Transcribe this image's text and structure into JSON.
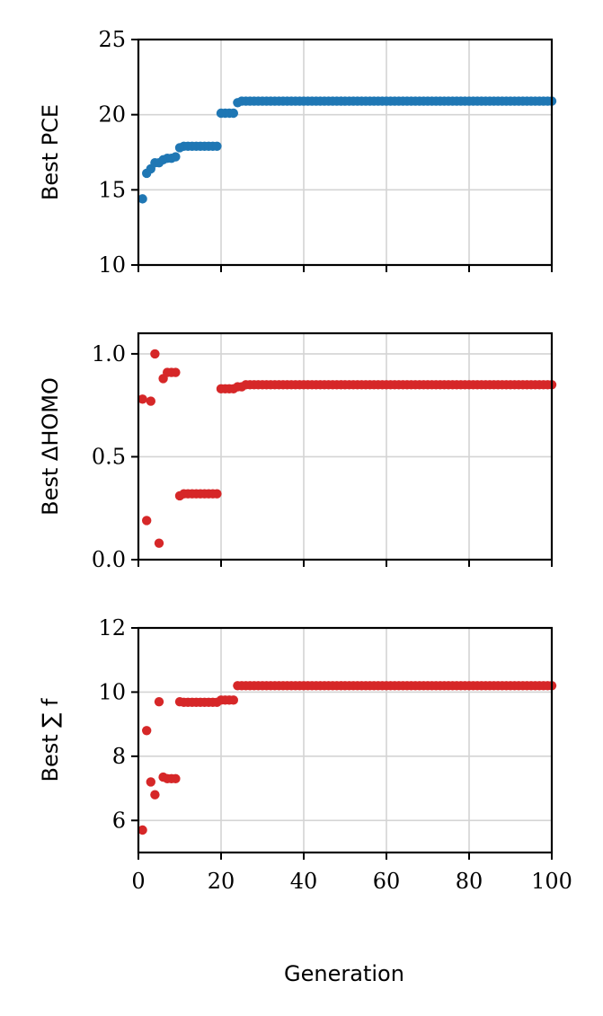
{
  "chart_data": [
    {
      "type": "scatter",
      "ylabel": "Best PCE",
      "xlim": [
        0,
        100
      ],
      "ylim": [
        10,
        25
      ],
      "yticks": [
        10,
        15,
        20,
        25
      ],
      "xticks": [
        0,
        20,
        40,
        60,
        80,
        100
      ],
      "show_xtick_labels": false,
      "grid": true,
      "color": "#1f77b4",
      "series": [
        {
          "x": [
            1,
            2,
            3,
            4,
            5,
            6,
            7,
            8,
            9,
            10,
            11,
            12,
            13,
            14,
            15,
            16,
            17,
            18,
            19,
            20,
            21,
            22,
            23,
            24,
            25,
            26,
            27,
            28,
            29,
            30,
            31,
            32,
            33,
            34,
            35,
            36,
            37,
            38,
            39,
            40,
            41,
            42,
            43,
            44,
            45,
            46,
            47,
            48,
            49,
            50,
            51,
            52,
            53,
            54,
            55,
            56,
            57,
            58,
            59,
            60,
            61,
            62,
            63,
            64,
            65,
            66,
            67,
            68,
            69,
            70,
            71,
            72,
            73,
            74,
            75,
            76,
            77,
            78,
            79,
            80,
            81,
            82,
            83,
            84,
            85,
            86,
            87,
            88,
            89,
            90,
            91,
            92,
            93,
            94,
            95,
            96,
            97,
            98,
            99,
            100
          ],
          "y": [
            14.4,
            16.1,
            16.4,
            16.8,
            16.8,
            17.0,
            17.1,
            17.1,
            17.2,
            17.8,
            17.9,
            17.9,
            17.9,
            17.9,
            17.9,
            17.9,
            17.9,
            17.9,
            17.9,
            20.1,
            20.1,
            20.1,
            20.1,
            20.8,
            20.9,
            20.9,
            20.9,
            20.9,
            20.9,
            20.9,
            20.9,
            20.9,
            20.9,
            20.9,
            20.9,
            20.9,
            20.9,
            20.9,
            20.9,
            20.9,
            20.9,
            20.9,
            20.9,
            20.9,
            20.9,
            20.9,
            20.9,
            20.9,
            20.9,
            20.9,
            20.9,
            20.9,
            20.9,
            20.9,
            20.9,
            20.9,
            20.9,
            20.9,
            20.9,
            20.9,
            20.9,
            20.9,
            20.9,
            20.9,
            20.9,
            20.9,
            20.9,
            20.9,
            20.9,
            20.9,
            20.9,
            20.9,
            20.9,
            20.9,
            20.9,
            20.9,
            20.9,
            20.9,
            20.9,
            20.9,
            20.9,
            20.9,
            20.9,
            20.9,
            20.9,
            20.9,
            20.9,
            20.9,
            20.9,
            20.9,
            20.9,
            20.9,
            20.9,
            20.9,
            20.9,
            20.9,
            20.9,
            20.9,
            20.9,
            20.9
          ]
        }
      ]
    },
    {
      "type": "scatter",
      "ylabel": "Best ΔHOMO",
      "xlim": [
        0,
        100
      ],
      "ylim": [
        0,
        1.1
      ],
      "yticks": [
        0.0,
        0.5,
        1.0
      ],
      "ytick_labels": [
        "0.0",
        "0.5",
        "1.0"
      ],
      "xticks": [
        0,
        20,
        40,
        60,
        80,
        100
      ],
      "show_xtick_labels": false,
      "grid": true,
      "color": "#d62728",
      "series": [
        {
          "x": [
            1,
            2,
            3,
            4,
            5,
            6,
            7,
            8,
            9,
            10,
            11,
            12,
            13,
            14,
            15,
            16,
            17,
            18,
            19,
            20,
            21,
            22,
            23,
            24,
            25,
            26,
            27,
            28,
            29,
            30,
            31,
            32,
            33,
            34,
            35,
            36,
            37,
            38,
            39,
            40,
            41,
            42,
            43,
            44,
            45,
            46,
            47,
            48,
            49,
            50,
            51,
            52,
            53,
            54,
            55,
            56,
            57,
            58,
            59,
            60,
            61,
            62,
            63,
            64,
            65,
            66,
            67,
            68,
            69,
            70,
            71,
            72,
            73,
            74,
            75,
            76,
            77,
            78,
            79,
            80,
            81,
            82,
            83,
            84,
            85,
            86,
            87,
            88,
            89,
            90,
            91,
            92,
            93,
            94,
            95,
            96,
            97,
            98,
            99,
            100
          ],
          "y": [
            0.78,
            0.19,
            0.77,
            1.0,
            0.08,
            0.88,
            0.91,
            0.91,
            0.91,
            0.31,
            0.32,
            0.32,
            0.32,
            0.32,
            0.32,
            0.32,
            0.32,
            0.32,
            0.32,
            0.83,
            0.83,
            0.83,
            0.83,
            0.84,
            0.84,
            0.85,
            0.85,
            0.85,
            0.85,
            0.85,
            0.85,
            0.85,
            0.85,
            0.85,
            0.85,
            0.85,
            0.85,
            0.85,
            0.85,
            0.85,
            0.85,
            0.85,
            0.85,
            0.85,
            0.85,
            0.85,
            0.85,
            0.85,
            0.85,
            0.85,
            0.85,
            0.85,
            0.85,
            0.85,
            0.85,
            0.85,
            0.85,
            0.85,
            0.85,
            0.85,
            0.85,
            0.85,
            0.85,
            0.85,
            0.85,
            0.85,
            0.85,
            0.85,
            0.85,
            0.85,
            0.85,
            0.85,
            0.85,
            0.85,
            0.85,
            0.85,
            0.85,
            0.85,
            0.85,
            0.85,
            0.85,
            0.85,
            0.85,
            0.85,
            0.85,
            0.85,
            0.85,
            0.85,
            0.85,
            0.85,
            0.85,
            0.85,
            0.85,
            0.85,
            0.85,
            0.85,
            0.85,
            0.85,
            0.85,
            0.85
          ]
        }
      ]
    },
    {
      "type": "scatter",
      "ylabel": "Best ∑ f",
      "xlabel": "Generation",
      "xlim": [
        0,
        100
      ],
      "ylim": [
        5,
        12
      ],
      "yticks": [
        6,
        8,
        10,
        12
      ],
      "xticks": [
        0,
        20,
        40,
        60,
        80,
        100
      ],
      "show_xtick_labels": true,
      "grid": true,
      "color": "#d62728",
      "series": [
        {
          "x": [
            1,
            2,
            3,
            4,
            5,
            6,
            7,
            8,
            9,
            10,
            11,
            12,
            13,
            14,
            15,
            16,
            17,
            18,
            19,
            20,
            21,
            22,
            23,
            24,
            25,
            26,
            27,
            28,
            29,
            30,
            31,
            32,
            33,
            34,
            35,
            36,
            37,
            38,
            39,
            40,
            41,
            42,
            43,
            44,
            45,
            46,
            47,
            48,
            49,
            50,
            51,
            52,
            53,
            54,
            55,
            56,
            57,
            58,
            59,
            60,
            61,
            62,
            63,
            64,
            65,
            66,
            67,
            68,
            69,
            70,
            71,
            72,
            73,
            74,
            75,
            76,
            77,
            78,
            79,
            80,
            81,
            82,
            83,
            84,
            85,
            86,
            87,
            88,
            89,
            90,
            91,
            92,
            93,
            94,
            95,
            96,
            97,
            98,
            99,
            100
          ],
          "y": [
            5.7,
            8.8,
            7.2,
            6.8,
            9.7,
            7.35,
            7.3,
            7.3,
            7.3,
            9.7,
            9.68,
            9.68,
            9.68,
            9.68,
            9.68,
            9.68,
            9.68,
            9.68,
            9.68,
            9.75,
            9.75,
            9.75,
            9.75,
            10.2,
            10.2,
            10.2,
            10.2,
            10.2,
            10.2,
            10.2,
            10.2,
            10.2,
            10.2,
            10.2,
            10.2,
            10.2,
            10.2,
            10.2,
            10.2,
            10.2,
            10.2,
            10.2,
            10.2,
            10.2,
            10.2,
            10.2,
            10.2,
            10.2,
            10.2,
            10.2,
            10.2,
            10.2,
            10.2,
            10.2,
            10.2,
            10.2,
            10.2,
            10.2,
            10.2,
            10.2,
            10.2,
            10.2,
            10.2,
            10.2,
            10.2,
            10.2,
            10.2,
            10.2,
            10.2,
            10.2,
            10.2,
            10.2,
            10.2,
            10.2,
            10.2,
            10.2,
            10.2,
            10.2,
            10.2,
            10.2,
            10.2,
            10.2,
            10.2,
            10.2,
            10.2,
            10.2,
            10.2,
            10.2,
            10.2,
            10.2,
            10.2,
            10.2,
            10.2,
            10.2,
            10.2,
            10.2,
            10.2,
            10.2,
            10.2,
            10.2
          ]
        }
      ]
    }
  ]
}
